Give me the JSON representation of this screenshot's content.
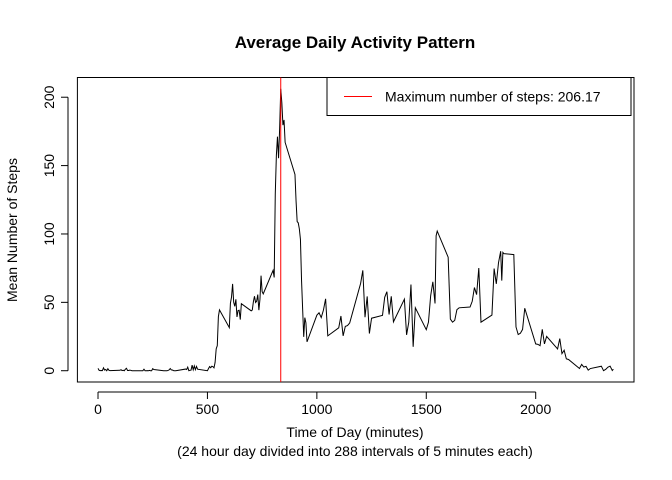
{
  "chart_data": {
    "type": "line",
    "title": "Average Daily Activity Pattern",
    "x_label": [
      "Time of Day (minutes)",
      "(24 hour day divided into 288 intervals of 5 minutes each)"
    ],
    "y_label": "Mean Number of Steps",
    "xlim": [
      -94.2,
      2449.2
    ],
    "xticks": [
      0,
      500,
      1000,
      1500,
      2000
    ],
    "ylim": [
      -8.25,
      214.42
    ],
    "yticks": [
      0,
      50,
      100,
      150,
      200
    ],
    "vline": {
      "x": 835,
      "color": "#ff0000"
    },
    "legend": {
      "position": "top-right",
      "label": "Maximum number of steps: 206.17",
      "color": "#ff0000"
    },
    "series": [
      {
        "color": "#000000",
        "x": [
          0,
          5,
          10,
          15,
          20,
          25,
          30,
          35,
          40,
          45,
          50,
          55,
          100,
          105,
          110,
          115,
          120,
          125,
          130,
          135,
          140,
          145,
          150,
          155,
          200,
          205,
          210,
          215,
          220,
          225,
          230,
          235,
          240,
          245,
          250,
          255,
          300,
          305,
          310,
          315,
          320,
          325,
          330,
          335,
          340,
          345,
          350,
          355,
          400,
          405,
          410,
          415,
          420,
          425,
          430,
          435,
          440,
          445,
          450,
          455,
          500,
          505,
          510,
          515,
          520,
          525,
          530,
          535,
          540,
          545,
          550,
          555,
          600,
          605,
          610,
          615,
          620,
          625,
          630,
          635,
          640,
          645,
          650,
          655,
          700,
          705,
          710,
          715,
          720,
          725,
          730,
          735,
          740,
          745,
          750,
          755,
          800,
          805,
          810,
          815,
          820,
          825,
          830,
          835,
          840,
          845,
          850,
          855,
          900,
          905,
          910,
          915,
          920,
          925,
          930,
          935,
          940,
          945,
          950,
          955,
          1000,
          1010,
          1020,
          1030,
          1040,
          1050,
          1100,
          1110,
          1120,
          1130,
          1140,
          1150,
          1200,
          1210,
          1220,
          1230,
          1240,
          1250,
          1300,
          1310,
          1320,
          1330,
          1340,
          1350,
          1400,
          1410,
          1420,
          1430,
          1440,
          1450,
          1500,
          1510,
          1520,
          1530,
          1540,
          1545,
          1550,
          1600,
          1610,
          1620,
          1630,
          1640,
          1650,
          1700,
          1710,
          1720,
          1730,
          1740,
          1750,
          1800,
          1810,
          1820,
          1830,
          1840,
          1845,
          1850,
          1855,
          1900,
          1910,
          1920,
          1930,
          1940,
          1950,
          2000,
          2010,
          2020,
          2030,
          2040,
          2050,
          2100,
          2110,
          2120,
          2130,
          2140,
          2150,
          2200,
          2210,
          2220,
          2230,
          2240,
          2250,
          2300,
          2310,
          2320,
          2330,
          2340,
          2350,
          2355
        ],
        "values": [
          1.7,
          0.3,
          0.1,
          0.2,
          0.1,
          2.1,
          0.5,
          0.9,
          0,
          1.5,
          0.3,
          0.1,
          0.3,
          0.7,
          0.1,
          0.3,
          0,
          1.1,
          1.8,
          0.2,
          0.2,
          0.4,
          0.3,
          0,
          0,
          0,
          1.1,
          0,
          0,
          0.1,
          0,
          0.2,
          0,
          0,
          1.5,
          0.9,
          0,
          0,
          0,
          0,
          0.2,
          0.6,
          1.6,
          0.6,
          0.5,
          0.1,
          0,
          0,
          1.2,
          0.9,
          2.6,
          0,
          0.3,
          0.4,
          4.1,
          0.7,
          3.5,
          0.8,
          3.1,
          1.1,
          0,
          1.6,
          3,
          2.2,
          3.3,
          3,
          2.1,
          6.1,
          16,
          18.3,
          39.5,
          44.5,
          31.5,
          49.3,
          53.8,
          63.5,
          50,
          47.1,
          52.2,
          39.3,
          44,
          44.2,
          37.4,
          49,
          43.8,
          44.4,
          50.5,
          54.5,
          49.9,
          50.9,
          55.7,
          44.3,
          52.3,
          69.5,
          57.8,
          56.2,
          73.4,
          68.2,
          129.4,
          157.5,
          171.2,
          155.4,
          177.3,
          206.17,
          195.9,
          179.6,
          183.4,
          167,
          143.5,
          124,
          109.1,
          108.1,
          103.7,
          96,
          66.2,
          45.2,
          24.8,
          38.8,
          35,
          21.1,
          40.6,
          42.4,
          38.9,
          44.3,
          52.6,
          25.5,
          31.4,
          40,
          25.5,
          32.4,
          33,
          34.9,
          63.9,
          73.4,
          39.1,
          54.3,
          27.2,
          38.4,
          40.5,
          53.7,
          57.8,
          41.1,
          54.4,
          35.7,
          52.3,
          26.2,
          35.5,
          63,
          17.5,
          46,
          30,
          35.5,
          54.8,
          65,
          49.2,
          98.7,
          102.1,
          83,
          37.8,
          35.5,
          36.8,
          44.7,
          46,
          46.6,
          50.8,
          60.8,
          55.7,
          75.1,
          35.5,
          40.7,
          74.7,
          63.5,
          78.9,
          87.4,
          65.9,
          86.5,
          85.6,
          84.9,
          32,
          26.5,
          27.4,
          30.2,
          45.7,
          19.6,
          19.3,
          18.3,
          30.3,
          19.6,
          25.1,
          15.9,
          23.5,
          12.5,
          15,
          8.7,
          8.2,
          1.6,
          4.6,
          2.7,
          3.2,
          0.4,
          1.6,
          3.3,
          0,
          1,
          2.6,
          3.3,
          0.2,
          1.1
        ]
      }
    ]
  }
}
